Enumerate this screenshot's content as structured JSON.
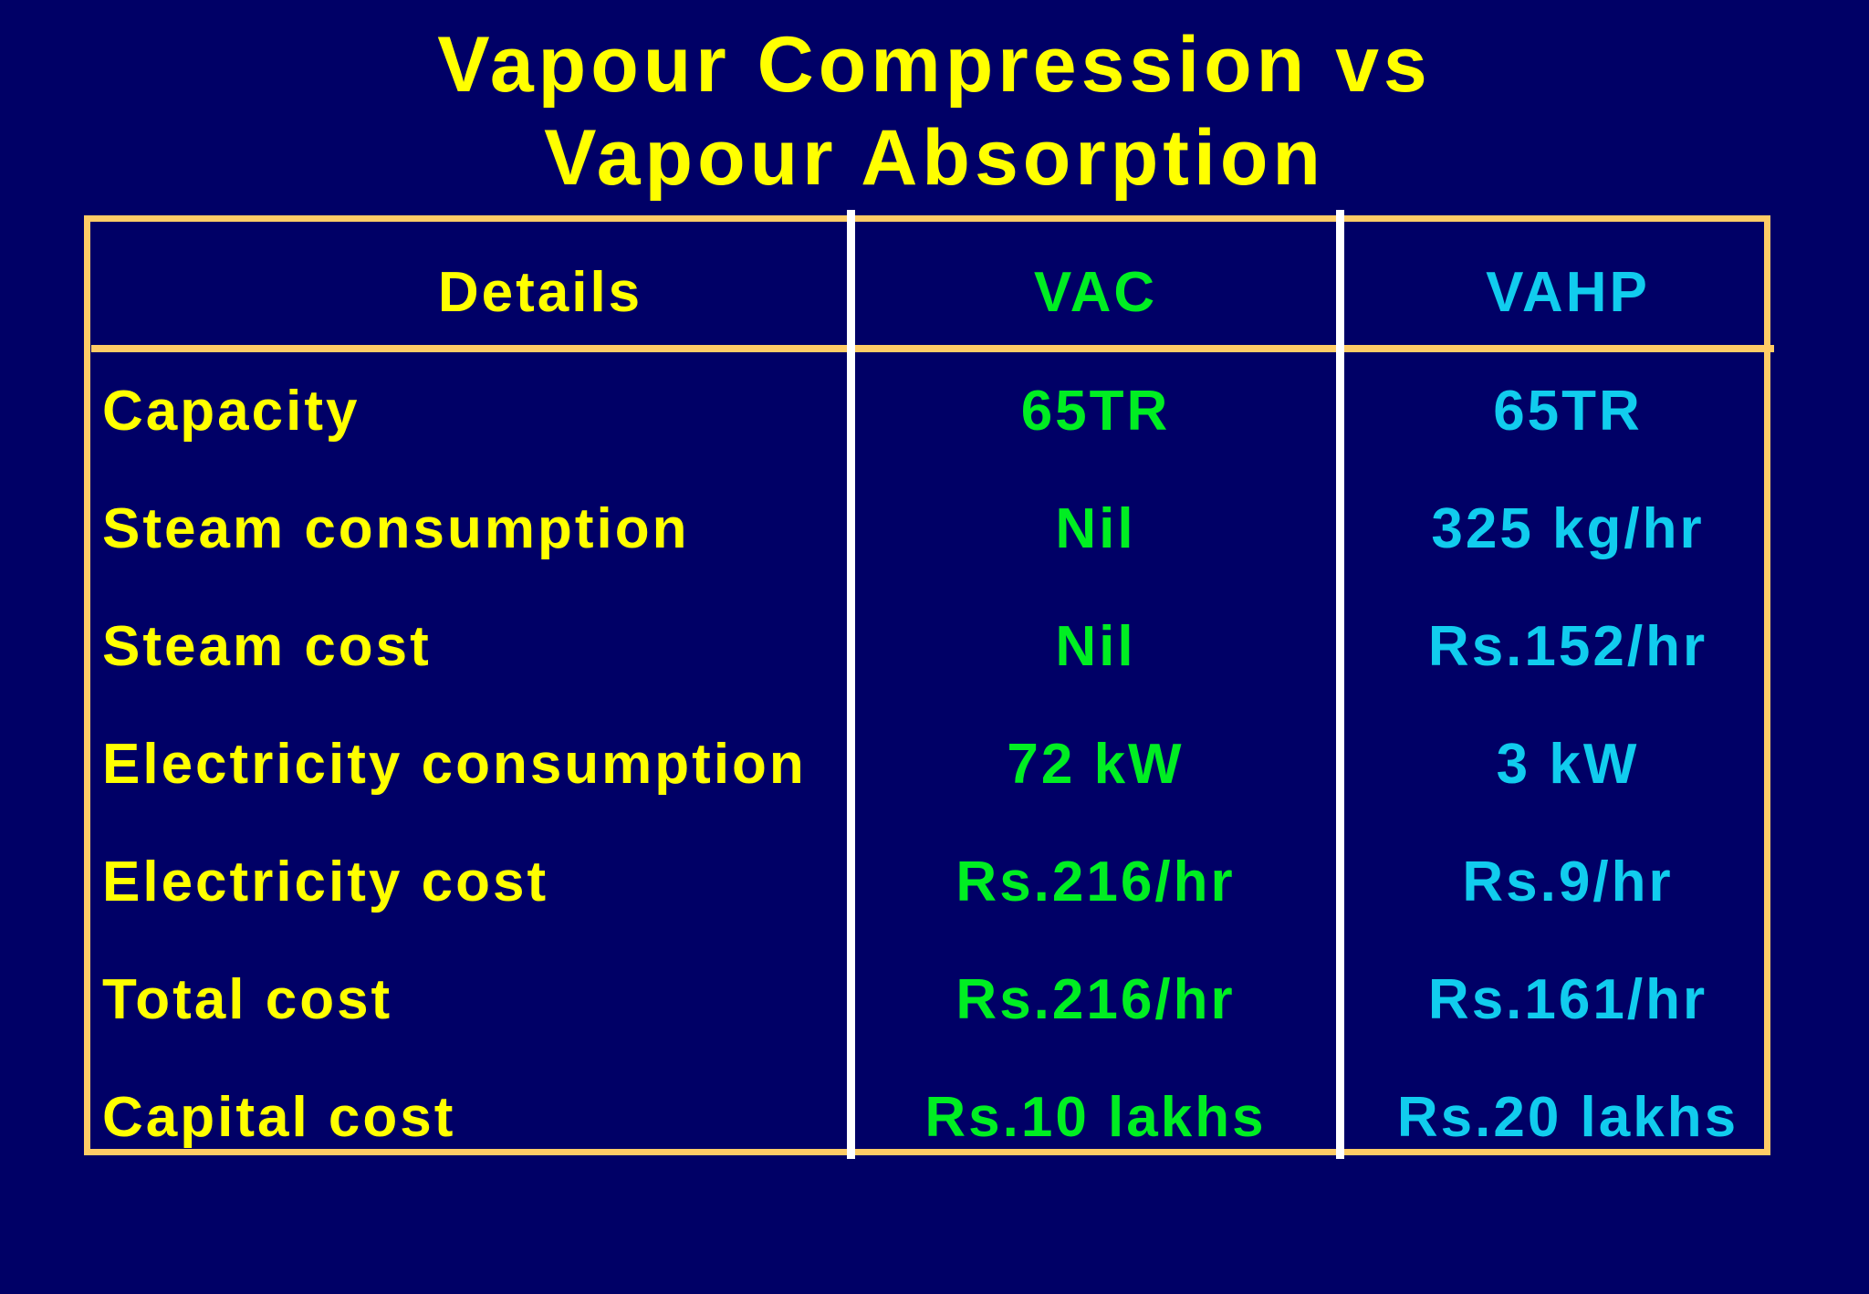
{
  "title": {
    "line1": "Vapour Compression vs",
    "line2": "Vapour Absorption"
  },
  "colors": {
    "background": "#000066",
    "title": "#ffff00",
    "frame": "#ffcc66",
    "divider": "#ffffff",
    "details_text": "#ffff00",
    "vac_text": "#00ee22",
    "vahp_text": "#11ccee"
  },
  "table": {
    "headers": {
      "details": "Details",
      "vac": "VAC",
      "vahp": "VAHP"
    },
    "rows": [
      {
        "detail": "Capacity",
        "vac": "65TR",
        "vahp": "65TR"
      },
      {
        "detail": "Steam consumption",
        "vac": "Nil",
        "vahp": "325 kg/hr"
      },
      {
        "detail": "Steam cost",
        "vac": "Nil",
        "vahp": "Rs.152/hr"
      },
      {
        "detail": "Electricity consumption",
        "vac": "72 kW",
        "vahp": "3 kW"
      },
      {
        "detail": "Electricity cost",
        "vac": "Rs.216/hr",
        "vahp": "Rs.9/hr"
      },
      {
        "detail": "Total cost",
        "vac": "Rs.216/hr",
        "vahp": "Rs.161/hr"
      },
      {
        "detail": "Capital cost",
        "vac": "Rs.10 lakhs",
        "vahp": "Rs.20 lakhs"
      }
    ]
  }
}
